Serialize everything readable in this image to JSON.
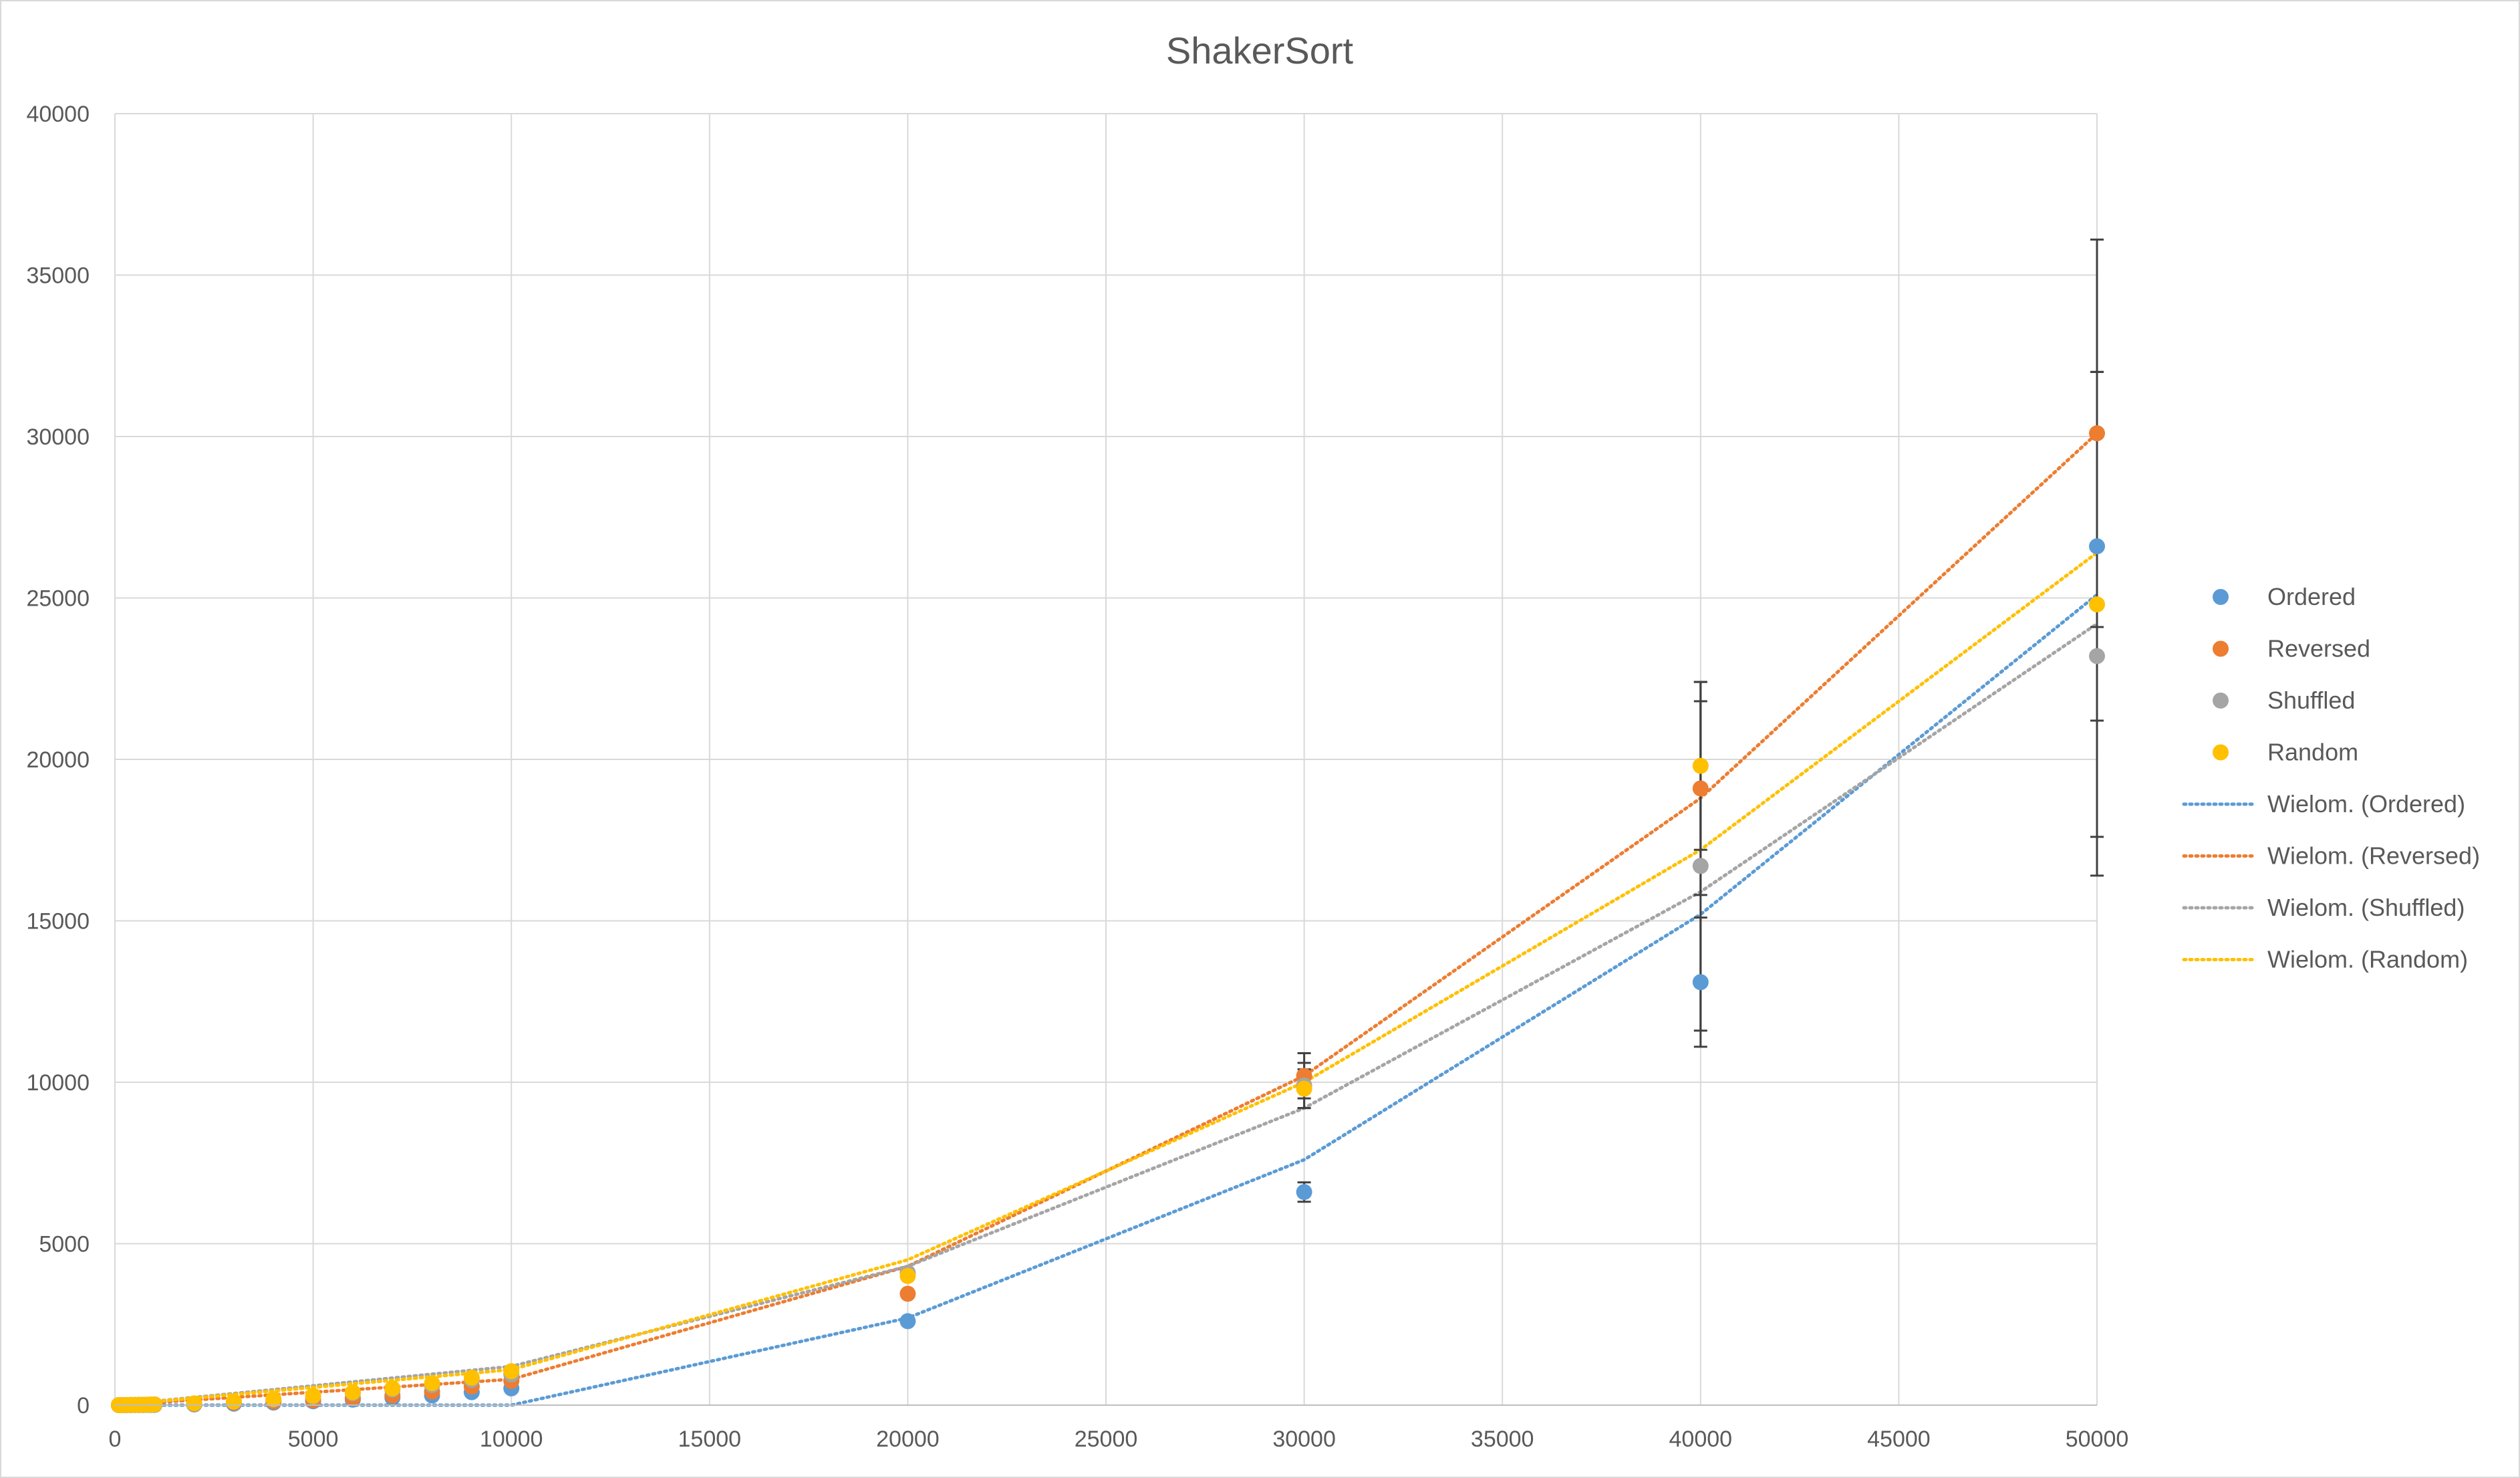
{
  "chart_data": {
    "type": "scatter",
    "title": "ShakerSort",
    "xlabel": "",
    "ylabel": "",
    "xlim": [
      0,
      50000
    ],
    "ylim": [
      0,
      40000
    ],
    "x_ticks": [
      0,
      5000,
      10000,
      15000,
      20000,
      25000,
      30000,
      35000,
      40000,
      45000,
      50000
    ],
    "y_ticks": [
      0,
      5000,
      10000,
      15000,
      20000,
      25000,
      30000,
      35000,
      40000
    ],
    "x_tick_labels": [
      "0",
      "5000",
      "10000",
      "15000",
      "20000",
      "25000",
      "30000",
      "35000",
      "40000",
      "45000",
      "50000"
    ],
    "y_tick_labels": [
      "0",
      "5000",
      "10000",
      "15000",
      "20000",
      "25000",
      "30000",
      "35000",
      "40000"
    ],
    "grid": true,
    "legend_position": "right",
    "x": [
      100,
      200,
      300,
      400,
      500,
      600,
      700,
      800,
      900,
      1000,
      2000,
      3000,
      4000,
      5000,
      6000,
      7000,
      8000,
      9000,
      10000,
      20000,
      30000,
      40000,
      50000
    ],
    "series": [
      {
        "name": "Ordered",
        "color": "#5B9BD5",
        "values": [
          0,
          0,
          1,
          1,
          2,
          2,
          3,
          4,
          5,
          6,
          22,
          45,
          80,
          120,
          170,
          230,
          300,
          400,
          520,
          2600,
          6600,
          13100,
          26600
        ],
        "error": [
          0,
          0,
          0,
          0,
          0,
          0,
          0,
          0,
          0,
          0,
          0,
          0,
          0,
          0,
          0,
          0,
          0,
          0,
          0,
          0,
          300,
          2000,
          5400
        ]
      },
      {
        "name": "Reversed",
        "color": "#ED7D31",
        "values": [
          1,
          2,
          3,
          4,
          6,
          8,
          10,
          13,
          16,
          20,
          40,
          75,
          110,
          150,
          220,
          300,
          420,
          580,
          750,
          3450,
          10200,
          19100,
          30100
        ],
        "error": [
          0,
          0,
          0,
          0,
          0,
          0,
          0,
          0,
          0,
          0,
          0,
          0,
          0,
          0,
          0,
          0,
          0,
          0,
          0,
          0,
          700,
          3300,
          6000
        ]
      },
      {
        "name": "Shuffled",
        "color": "#A5A5A5",
        "values": [
          1,
          2,
          3,
          4,
          6,
          8,
          10,
          13,
          16,
          20,
          50,
          100,
          170,
          260,
          370,
          480,
          620,
          780,
          950,
          4100,
          9900,
          16700,
          23200
        ],
        "error": [
          0,
          0,
          0,
          0,
          0,
          0,
          0,
          0,
          0,
          0,
          0,
          0,
          0,
          0,
          0,
          0,
          0,
          0,
          0,
          0,
          700,
          5100,
          6800
        ]
      },
      {
        "name": "Random",
        "color": "#FFC000",
        "values": [
          1,
          2,
          3,
          4,
          6,
          8,
          10,
          13,
          16,
          20,
          55,
          110,
          190,
          290,
          400,
          520,
          680,
          850,
          1050,
          4000,
          9800,
          19800,
          24800
        ],
        "error": [
          0,
          0,
          0,
          0,
          0,
          0,
          0,
          0,
          0,
          0,
          0,
          0,
          0,
          0,
          0,
          0,
          0,
          0,
          0,
          0,
          600,
          2600,
          7200
        ]
      }
    ],
    "trendlines": [
      {
        "name": "Wielom. (Ordered)",
        "color": "#5B9BD5",
        "points": [
          [
            0,
            0
          ],
          [
            10000,
            0
          ],
          [
            20000,
            2700
          ],
          [
            30000,
            7600
          ],
          [
            40000,
            15200
          ],
          [
            50000,
            25100
          ]
        ]
      },
      {
        "name": "Wielom. (Reversed)",
        "color": "#ED7D31",
        "points": [
          [
            0,
            0
          ],
          [
            10000,
            800
          ],
          [
            20000,
            4300
          ],
          [
            30000,
            10200
          ],
          [
            40000,
            18800
          ],
          [
            50000,
            30100
          ]
        ]
      },
      {
        "name": "Wielom. (Shuffled)",
        "color": "#A5A5A5",
        "points": [
          [
            0,
            0
          ],
          [
            10000,
            1200
          ],
          [
            20000,
            4300
          ],
          [
            30000,
            9200
          ],
          [
            40000,
            15900
          ],
          [
            50000,
            24200
          ]
        ]
      },
      {
        "name": "Wielom. (Random)",
        "color": "#FFC000",
        "points": [
          [
            0,
            0
          ],
          [
            10000,
            1100
          ],
          [
            20000,
            4500
          ],
          [
            30000,
            10000
          ],
          [
            40000,
            17200
          ],
          [
            50000,
            26400
          ]
        ]
      }
    ]
  }
}
